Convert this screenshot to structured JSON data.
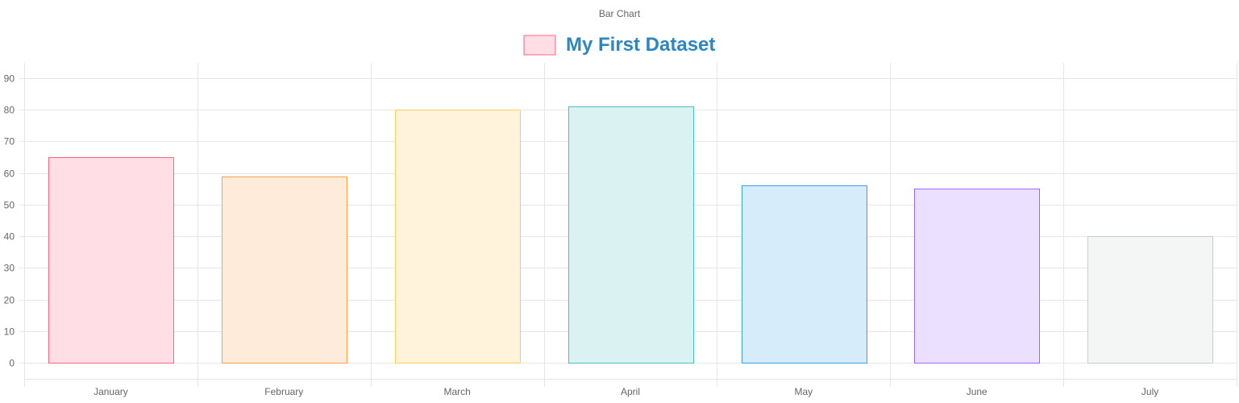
{
  "chart_data": {
    "type": "bar",
    "title": "Bar Chart",
    "categories": [
      "January",
      "February",
      "March",
      "April",
      "May",
      "June",
      "July"
    ],
    "series": [
      {
        "name": "My First Dataset",
        "values": [
          65,
          59,
          80,
          81,
          56,
          55,
          40
        ]
      }
    ],
    "ylim": [
      0,
      90
    ],
    "yticks": [
      0,
      10,
      20,
      30,
      40,
      50,
      60,
      70,
      80,
      90
    ],
    "legend_position": "top",
    "grid": true,
    "colors": {
      "legend_text": "#2e86c1",
      "bar_fills": [
        "#ffdfe5",
        "#ffebd9",
        "#fff3db",
        "#dbf2f2",
        "#d6ecfb",
        "#ebe0ff",
        "#f4f5f5"
      ],
      "bar_borders": [
        "#ff6384",
        "#ff9f40",
        "#ffcd56",
        "#4bc0c0",
        "#36a2eb",
        "#9966ff",
        "#c9cbcf"
      ]
    }
  }
}
